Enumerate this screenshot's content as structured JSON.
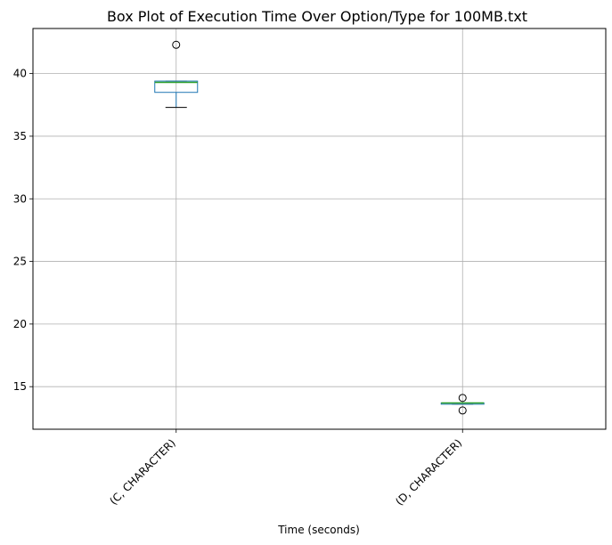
{
  "chart_data": {
    "type": "box",
    "title": "Box Plot of Execution Time Over Option/Type for 100MB.txt",
    "xlabel": "Time (seconds)",
    "ylabel": "",
    "ylim": [
      11.6,
      43.6
    ],
    "yticks": [
      15,
      20,
      25,
      30,
      35,
      40
    ],
    "grid": true,
    "categories": [
      "(C, CHARACTER)",
      "(D, CHARACTER)"
    ],
    "boxes": [
      {
        "category": "(C, CHARACTER)",
        "whisker_low": 37.3,
        "q1": 38.5,
        "median": 39.3,
        "q3": 39.4,
        "whisker_high": 39.4,
        "outliers": [
          42.3
        ]
      },
      {
        "category": "(D, CHARACTER)",
        "whisker_low": 13.6,
        "q1": 13.6,
        "median": 13.7,
        "q3": 13.7,
        "whisker_high": 13.7,
        "outliers": [
          14.1,
          13.1
        ]
      }
    ],
    "colors": {
      "box": "#1f77b4",
      "median": "#2ca02c",
      "whisker": "#1f77b4",
      "cap": "#000000",
      "grid": "#b0b0b0",
      "axis": "#000000"
    }
  }
}
